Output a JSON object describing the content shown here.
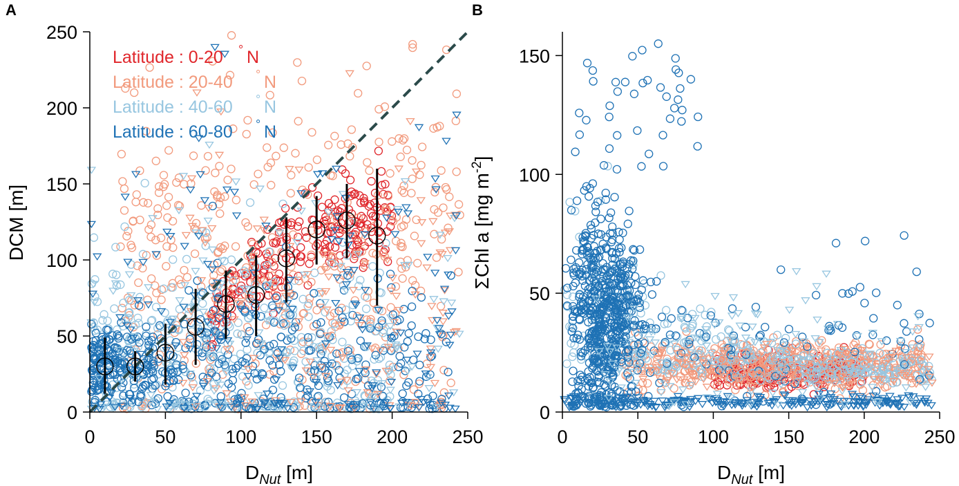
{
  "panels": [
    {
      "id": "A",
      "letter": "A",
      "xlabel_main": "D",
      "xlabel_sub": "Nut",
      "xlabel_unit": " [m]",
      "ylabel": "DCM [m]",
      "xlim": [
        0,
        250
      ],
      "ylim": [
        0,
        250
      ],
      "xticks": [
        0,
        50,
        100,
        150,
        200,
        250
      ],
      "yticks": [
        0,
        50,
        100,
        150,
        200,
        250
      ]
    },
    {
      "id": "B",
      "letter": "B",
      "xlabel_main": "D",
      "xlabel_sub": "Nut",
      "xlabel_unit": " [m]",
      "ylabel_main": "ΣChl a [mg m",
      "ylabel_sup": "-2",
      "ylabel_end": "]",
      "xlim": [
        0,
        250
      ],
      "ylim": [
        0,
        160
      ],
      "xticks": [
        0,
        50,
        100,
        150,
        200,
        250
      ],
      "yticks": [
        0,
        50,
        100,
        150
      ]
    }
  ],
  "legend": [
    {
      "label": "Latitude : 0-20",
      "unit": "N",
      "color": "#e0262b"
    },
    {
      "label": "Latitude : 20-40",
      "unit": "N",
      "color": "#f29a7d"
    },
    {
      "label": "Latitude : 40-60",
      "unit": "N",
      "color": "#97c6e0"
    },
    {
      "label": "Latitude : 60-80",
      "unit": "N",
      "color": "#1f72b5"
    }
  ],
  "chart_data": [
    {
      "type": "scatter",
      "panel": "A",
      "title": "",
      "xlabel": "D_Nut [m]",
      "ylabel": "DCM [m]",
      "xlim": [
        0,
        250
      ],
      "ylim": [
        0,
        250
      ],
      "series_names": [
        "Latitude : 0-20 °N",
        "Latitude : 20-40 °N",
        "Latitude : 40-60 °N",
        "Latitude : 60-80 °N"
      ],
      "reference_line": {
        "style": "dashed",
        "color": "#2b4a4a",
        "points": [
          [
            0,
            0
          ],
          [
            250,
            250
          ]
        ],
        "meaning": "DCM = D_Nut"
      },
      "binned_means": {
        "x": [
          10,
          30,
          50,
          70,
          90,
          110,
          130,
          150,
          170,
          190
        ],
        "y": [
          30,
          30,
          39,
          56,
          71,
          77,
          101,
          120,
          126,
          116
        ],
        "y_low": [
          12,
          20,
          18,
          31,
          48,
          50,
          72,
          97,
          101,
          70
        ],
        "y_high": [
          49,
          40,
          58,
          81,
          93,
          103,
          128,
          142,
          150,
          160
        ]
      },
      "point_clouds": [
        {
          "series": 0,
          "marker": "circle",
          "x_range": [
            80,
            200
          ],
          "y_center": 120,
          "y_spread": 32,
          "count": 240,
          "shape": "corridor"
        },
        {
          "series": 1,
          "marker": "circle",
          "x_range": [
            20,
            245
          ],
          "y_center": 95,
          "y_spread": 60,
          "count": 420,
          "shape": "scatter"
        },
        {
          "series": 2,
          "marker": "circle",
          "x_range": [
            0,
            200
          ],
          "y_center": 40,
          "y_spread": 35,
          "count": 380,
          "shape": "scatter"
        },
        {
          "series": 3,
          "marker": "circle",
          "x_range": [
            0,
            240
          ],
          "y_center": 30,
          "y_spread": 30,
          "count": 520,
          "shape": "lowcluster"
        },
        {
          "series": 1,
          "marker": "triangle",
          "x_range": [
            60,
            245
          ],
          "y_center": 60,
          "y_spread": 60,
          "count": 140,
          "shape": "scatter"
        },
        {
          "series": 2,
          "marker": "triangle",
          "x_range": [
            0,
            245
          ],
          "y_center": 40,
          "y_spread": 60,
          "count": 140,
          "shape": "scatter"
        },
        {
          "series": 3,
          "marker": "triangle",
          "x_range": [
            0,
            245
          ],
          "y_center": 40,
          "y_spread": 70,
          "count": 180,
          "shape": "scatter"
        }
      ]
    },
    {
      "type": "scatter",
      "panel": "B",
      "title": "",
      "xlabel": "D_Nut [m]",
      "ylabel": "ΣChl a [mg m-2]",
      "xlim": [
        0,
        250
      ],
      "ylim": [
        0,
        160
      ],
      "series_names": [
        "Latitude : 0-20 °N",
        "Latitude : 20-40 °N",
        "Latitude : 40-60 °N",
        "Latitude : 60-80 °N"
      ],
      "point_clouds": [
        {
          "series": 0,
          "marker": "circle",
          "x_range": [
            100,
            200
          ],
          "y_center": 17,
          "y_spread": 6,
          "count": 220,
          "shape": "band"
        },
        {
          "series": 1,
          "marker": "circle",
          "x_range": [
            40,
            240
          ],
          "y_center": 20,
          "y_spread": 9,
          "count": 420,
          "shape": "band"
        },
        {
          "series": 2,
          "marker": "circle",
          "x_range": [
            0,
            245
          ],
          "y_center": 30,
          "y_spread": 25,
          "count": 360,
          "shape": "decay"
        },
        {
          "series": 3,
          "marker": "circle",
          "x_range": [
            0,
            60
          ],
          "y_center": 40,
          "y_spread": 30,
          "count": 620,
          "shape": "column"
        },
        {
          "series": 3,
          "marker": "circle",
          "x_range": [
            10,
            90
          ],
          "y_center": 130,
          "y_spread": 20,
          "count": 40,
          "shape": "scatter"
        },
        {
          "series": 3,
          "marker": "circle",
          "x_range": [
            60,
            245
          ],
          "y_center": 25,
          "y_spread": 18,
          "count": 90,
          "shape": "scatter"
        },
        {
          "series": 3,
          "marker": "triangle",
          "x_range": [
            0,
            245
          ],
          "y_center": 4,
          "y_spread": 2.5,
          "count": 220,
          "shape": "floor"
        },
        {
          "series": 2,
          "marker": "triangle",
          "x_range": [
            20,
            245
          ],
          "y_center": 25,
          "y_spread": 15,
          "count": 120,
          "shape": "scatter"
        },
        {
          "series": 1,
          "marker": "triangle",
          "x_range": [
            50,
            245
          ],
          "y_center": 18,
          "y_spread": 8,
          "count": 100,
          "shape": "band"
        }
      ]
    }
  ]
}
